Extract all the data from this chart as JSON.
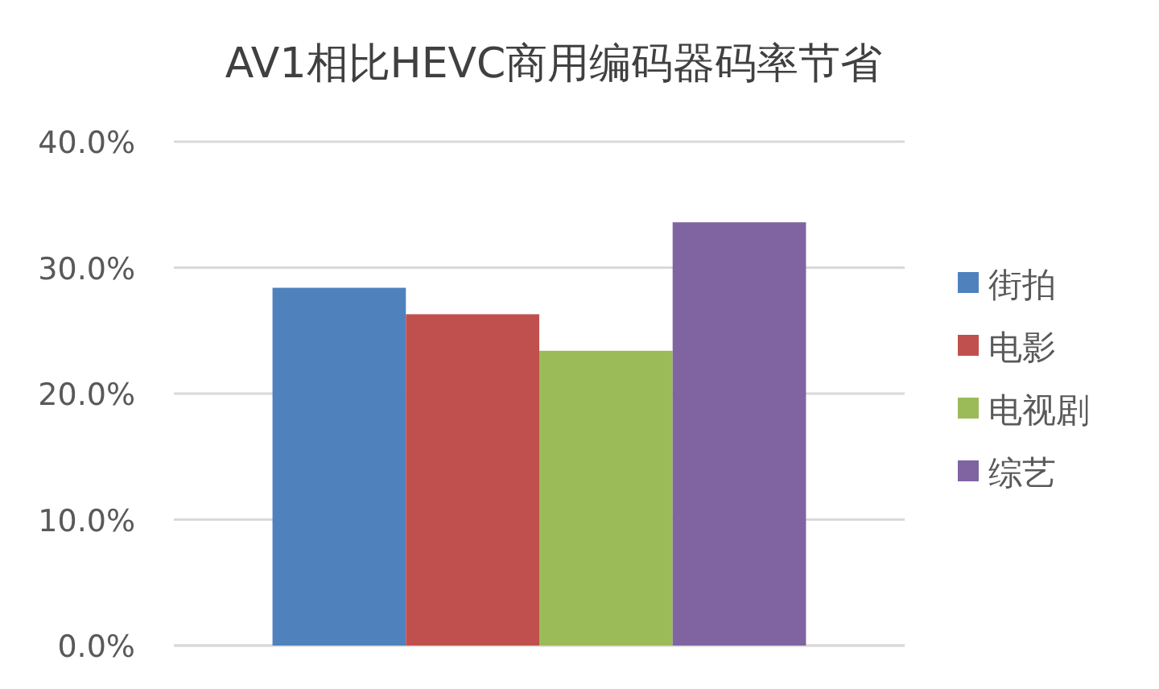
{
  "chart_data": {
    "type": "bar",
    "title": "AV1相比HEVC商用编码器码率节省",
    "categories": [
      null
    ],
    "series": [
      {
        "name": "街拍",
        "color": "#4f81bd",
        "values": [
          28.4
        ]
      },
      {
        "name": "电影",
        "color": "#c0504d",
        "values": [
          26.3
        ]
      },
      {
        "name": "电视剧",
        "color": "#9bbb59",
        "values": [
          23.4
        ]
      },
      {
        "name": "综艺",
        "color": "#8064a2",
        "values": [
          33.6
        ]
      }
    ],
    "ylim": [
      0,
      40
    ],
    "yticks": [
      {
        "value": 0,
        "label": "0.0%"
      },
      {
        "value": 10,
        "label": "10.0%"
      },
      {
        "value": 20,
        "label": "20.0%"
      },
      {
        "value": 30,
        "label": "30.0%"
      },
      {
        "value": 40,
        "label": "40.0%"
      }
    ],
    "grid": "y",
    "legend": "right"
  }
}
